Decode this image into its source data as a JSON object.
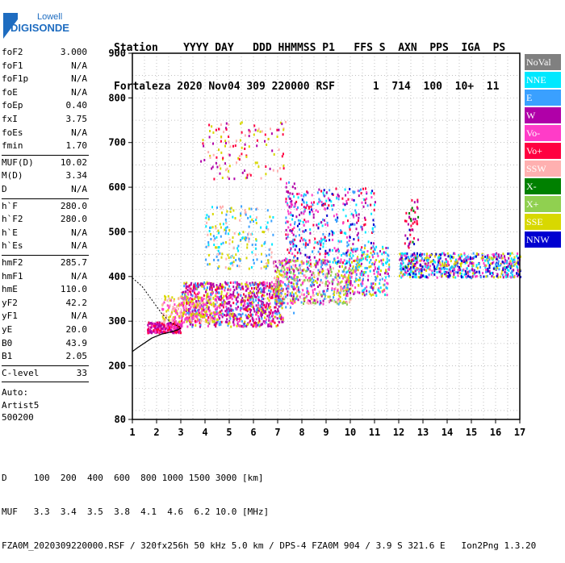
{
  "logo": {
    "brand": "Lowell",
    "product": "DIGISONDE"
  },
  "header": {
    "columns": "Station    YYYY DAY   DDD HHMMSS P1   FFS S  AXN  PPS  IGA  PS",
    "values": "Fortaleza 2020 Nov04 309 220000 RSF      1  714  100  10+  11"
  },
  "params": {
    "group1": [
      {
        "name": "foF2",
        "value": "3.000"
      },
      {
        "name": "foF1",
        "value": "N/A"
      },
      {
        "name": "foF1p",
        "value": "N/A"
      },
      {
        "name": "foE",
        "value": "N/A"
      },
      {
        "name": "foEp",
        "value": "0.40"
      },
      {
        "name": "fxI",
        "value": "3.75"
      },
      {
        "name": "foEs",
        "value": "N/A"
      },
      {
        "name": "fmin",
        "value": "1.70"
      }
    ],
    "group2": [
      {
        "name": "MUF(D)",
        "value": "10.02"
      },
      {
        "name": "M(D)",
        "value": "3.34"
      },
      {
        "name": "D",
        "value": "N/A"
      }
    ],
    "group3": [
      {
        "name": "h`F",
        "value": "280.0"
      },
      {
        "name": "h`F2",
        "value": "280.0"
      },
      {
        "name": "h`E",
        "value": "N/A"
      },
      {
        "name": "h`Es",
        "value": "N/A"
      }
    ],
    "group4": [
      {
        "name": "hmF2",
        "value": "285.7"
      },
      {
        "name": "hmF1",
        "value": "N/A"
      },
      {
        "name": "hmE",
        "value": "110.0"
      },
      {
        "name": "yF2",
        "value": "42.2"
      },
      {
        "name": "yF1",
        "value": "N/A"
      },
      {
        "name": "yE",
        "value": "20.0"
      },
      {
        "name": "B0",
        "value": "43.9"
      },
      {
        "name": "B1",
        "value": "2.05"
      }
    ],
    "clevel": {
      "name": "C-level",
      "value": "33"
    },
    "auto": [
      "Auto:",
      "Artist5",
      "500200"
    ]
  },
  "legend": [
    {
      "label": "NoVal",
      "color": "#808080"
    },
    {
      "label": "NNE",
      "color": "#00e8ff"
    },
    {
      "label": "E",
      "color": "#3aa0ff"
    },
    {
      "label": "W",
      "color": "#b000a8"
    },
    {
      "label": "Vo-",
      "color": "#ff3cc8"
    },
    {
      "label": "Vo+",
      "color": "#ff0040"
    },
    {
      "label": "SSW",
      "color": "#ffb0b0"
    },
    {
      "label": "X-",
      "color": "#008000"
    },
    {
      "label": "X+",
      "color": "#90d050"
    },
    {
      "label": "SSE",
      "color": "#d8d800"
    },
    {
      "label": "NNW",
      "color": "#0000d0"
    }
  ],
  "footer": {
    "line1": "D     100  200  400  600  800 1000 1500 3000 [km]",
    "line2": "MUF   3.3  3.4  3.5  3.8  4.1  4.6  6.2 10.0 [MHz]",
    "line3": "FZA0M_2020309220000.RSF / 320fx256h 50 kHz 5.0 km / DPS-4 FZA0M 904 / 3.9 S 321.6 E   Ion2Png 1.3.20"
  },
  "chart_data": {
    "type": "scatter",
    "xlim": [
      1,
      17
    ],
    "ylim": [
      80,
      900
    ],
    "x_ticks": [
      "1",
      "2",
      "3",
      "4",
      "5",
      "6",
      "7",
      "8",
      "9",
      "10",
      "11",
      "12",
      "13",
      "14",
      "15",
      "16",
      "17"
    ],
    "y_ticks": [
      "80",
      "200",
      "300",
      "400",
      "500",
      "600",
      "700",
      "800",
      "900"
    ],
    "grid": true,
    "legend_position": "right",
    "profile": [
      [
        3.0,
        285
      ],
      [
        2.9,
        281
      ],
      [
        2.6,
        276
      ],
      [
        2.2,
        271
      ],
      [
        1.8,
        262
      ],
      [
        1.2,
        240
      ],
      [
        1.0,
        232
      ]
    ],
    "profile_top": [
      [
        1.0,
        397
      ],
      [
        1.4,
        378
      ],
      [
        1.8,
        348
      ],
      [
        2.2,
        318
      ],
      [
        2.6,
        296
      ],
      [
        3.0,
        286
      ]
    ],
    "clusters": [
      {
        "x": [
          1.6,
          3.0
        ],
        "y": [
          276,
          300
        ],
        "n": 260,
        "colors": [
          "#b000a8",
          "#ff0040",
          "#ff3cc8"
        ]
      },
      {
        "x": [
          3.0,
          7.2
        ],
        "y": [
          290,
          390
        ],
        "n": 950,
        "colors": [
          "#b000a8",
          "#ff3cc8",
          "#ff0040",
          "#b000a8",
          "#d8d800",
          "#3aa0ff"
        ]
      },
      {
        "x": [
          2.2,
          4.5
        ],
        "y": [
          300,
          360
        ],
        "n": 250,
        "colors": [
          "#d8d800",
          "#ffb0b0",
          "#ff3cc8"
        ]
      },
      {
        "x": [
          6.8,
          10.0
        ],
        "y": [
          340,
          440
        ],
        "n": 550,
        "colors": [
          "#d8d800",
          "#ffb0b0",
          "#ff3cc8",
          "#b000a8",
          "#3aa0ff",
          "#90d050"
        ]
      },
      {
        "x": [
          9.8,
          11.6
        ],
        "y": [
          360,
          470
        ],
        "n": 250,
        "colors": [
          "#d8d800",
          "#ff3cc8",
          "#b000a8",
          "#00e8ff",
          "#3aa0ff"
        ]
      },
      {
        "x": [
          7.3,
          11.0
        ],
        "y": [
          430,
          600
        ],
        "n": 380,
        "colors": [
          "#0000d0",
          "#3aa0ff",
          "#00e8ff",
          "#ff0040",
          "#b000a8",
          "#ff3cc8"
        ]
      },
      {
        "x": [
          12.0,
          17.0
        ],
        "y": [
          400,
          455
        ],
        "n": 650,
        "colors": [
          "#3aa0ff",
          "#00e8ff",
          "#b000a8",
          "#ff3cc8",
          "#d8d800",
          "#0000d0"
        ]
      },
      {
        "x": [
          4.0,
          6.8
        ],
        "y": [
          420,
          560
        ],
        "n": 200,
        "colors": [
          "#00e8ff",
          "#3aa0ff",
          "#ffb0b0",
          "#d8d800"
        ]
      },
      {
        "x": [
          3.8,
          7.3
        ],
        "y": [
          620,
          750
        ],
        "n": 130,
        "colors": [
          "#d8d800",
          "#b000a8",
          "#ff0040",
          "#ffb0b0"
        ]
      },
      {
        "x": [
          7.3,
          7.7
        ],
        "y": [
          320,
          620
        ],
        "n": 70,
        "colors": [
          "#b000a8",
          "#ff3cc8",
          "#3aa0ff"
        ]
      },
      {
        "x": [
          12.2,
          12.8
        ],
        "y": [
          420,
          580
        ],
        "n": 60,
        "colors": [
          "#ff0040",
          "#0000d0",
          "#b000a8",
          "#008000"
        ]
      }
    ]
  }
}
